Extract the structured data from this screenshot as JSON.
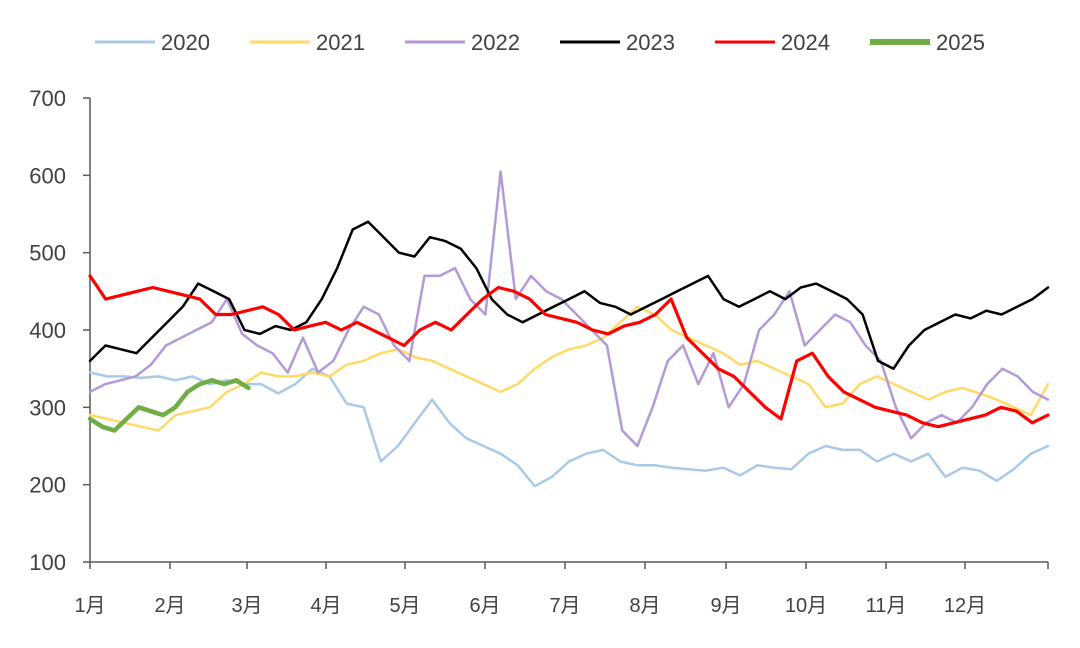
{
  "chart_data": {
    "type": "line",
    "title": "",
    "xlabel": "",
    "ylabel": "",
    "ylim": [
      100,
      700
    ],
    "yticks": [
      100,
      200,
      300,
      400,
      500,
      600,
      700
    ],
    "x_unit": "week of year (approx. weekly values, week 1 = early Jan)",
    "x_range": [
      1,
      53
    ],
    "grid": false,
    "legend_position": "top",
    "month_labels": [
      "1月",
      "2月",
      "3月",
      "4月",
      "5月",
      "6月",
      "7月",
      "8月",
      "9月",
      "10月",
      "11月",
      "12月"
    ],
    "series": [
      {
        "name": "2020",
        "color": "#a9c9e6",
        "width": 2.5,
        "values": [
          345,
          340,
          340,
          338,
          340,
          335,
          340,
          330,
          335,
          330,
          330,
          318,
          330,
          350,
          340,
          305,
          300,
          230,
          250,
          280,
          310,
          280,
          260,
          250,
          240,
          225,
          198,
          210,
          230,
          240,
          245,
          230,
          225,
          225,
          222,
          220,
          218,
          222,
          212,
          225,
          222,
          220,
          240,
          250,
          245,
          245,
          230,
          240,
          230,
          240,
          210,
          222,
          218,
          205,
          220,
          240,
          250
        ]
      },
      {
        "name": "2021",
        "color": "#ffd966",
        "width": 2.5,
        "values": [
          290,
          285,
          280,
          275,
          270,
          290,
          295,
          300,
          320,
          330,
          345,
          340,
          340,
          345,
          340,
          355,
          360,
          370,
          375,
          365,
          360,
          350,
          340,
          330,
          320,
          330,
          350,
          365,
          375,
          380,
          390,
          410,
          430,
          420,
          400,
          390,
          380,
          370,
          355,
          360,
          350,
          340,
          330,
          300,
          305,
          330,
          340,
          330,
          320,
          310,
          320,
          325,
          318,
          310,
          300,
          290,
          330
        ]
      },
      {
        "name": "2022",
        "color": "#b39ad6",
        "width": 2.5,
        "values": [
          320,
          330,
          335,
          340,
          355,
          380,
          390,
          400,
          410,
          440,
          395,
          380,
          370,
          345,
          390,
          345,
          360,
          400,
          430,
          420,
          380,
          360,
          470,
          470,
          480,
          440,
          420,
          605,
          440,
          470,
          450,
          440,
          420,
          400,
          380,
          270,
          250,
          300,
          360,
          380,
          330,
          370,
          300,
          330,
          400,
          420,
          450,
          380,
          400,
          420,
          410,
          380,
          360,
          300,
          260,
          280,
          290,
          280,
          300,
          330,
          350,
          340,
          320,
          310
        ]
      },
      {
        "name": "2023",
        "color": "#000000",
        "width": 2.5,
        "values": [
          360,
          380,
          375,
          370,
          390,
          410,
          430,
          460,
          450,
          440,
          400,
          395,
          405,
          400,
          410,
          440,
          480,
          530,
          540,
          520,
          500,
          495,
          520,
          515,
          505,
          480,
          440,
          420,
          410,
          420,
          430,
          440,
          450,
          435,
          430,
          420,
          430,
          440,
          450,
          460,
          470,
          440,
          430,
          440,
          450,
          440,
          455,
          460,
          450,
          440,
          420,
          360,
          350,
          380,
          400,
          410,
          420,
          415,
          425,
          420,
          430,
          440,
          455
        ]
      },
      {
        "name": "2024",
        "color": "#ff0000",
        "width": 3.2,
        "values": [
          470,
          440,
          445,
          450,
          455,
          450,
          445,
          440,
          420,
          420,
          425,
          430,
          420,
          400,
          405,
          410,
          400,
          410,
          400,
          390,
          380,
          400,
          410,
          400,
          420,
          440,
          455,
          450,
          440,
          420,
          415,
          410,
          400,
          395,
          405,
          410,
          420,
          440,
          390,
          370,
          350,
          340,
          320,
          300,
          285,
          360,
          370,
          340,
          320,
          310,
          300,
          295,
          290,
          280,
          275,
          280,
          285,
          290,
          300,
          295,
          280,
          290
        ]
      },
      {
        "name": "2025",
        "color": "#70ad47",
        "width": 4.5,
        "values": [
          285,
          275,
          270,
          285,
          300,
          295,
          290,
          300,
          320,
          330,
          335,
          330,
          335,
          325
        ]
      }
    ]
  }
}
